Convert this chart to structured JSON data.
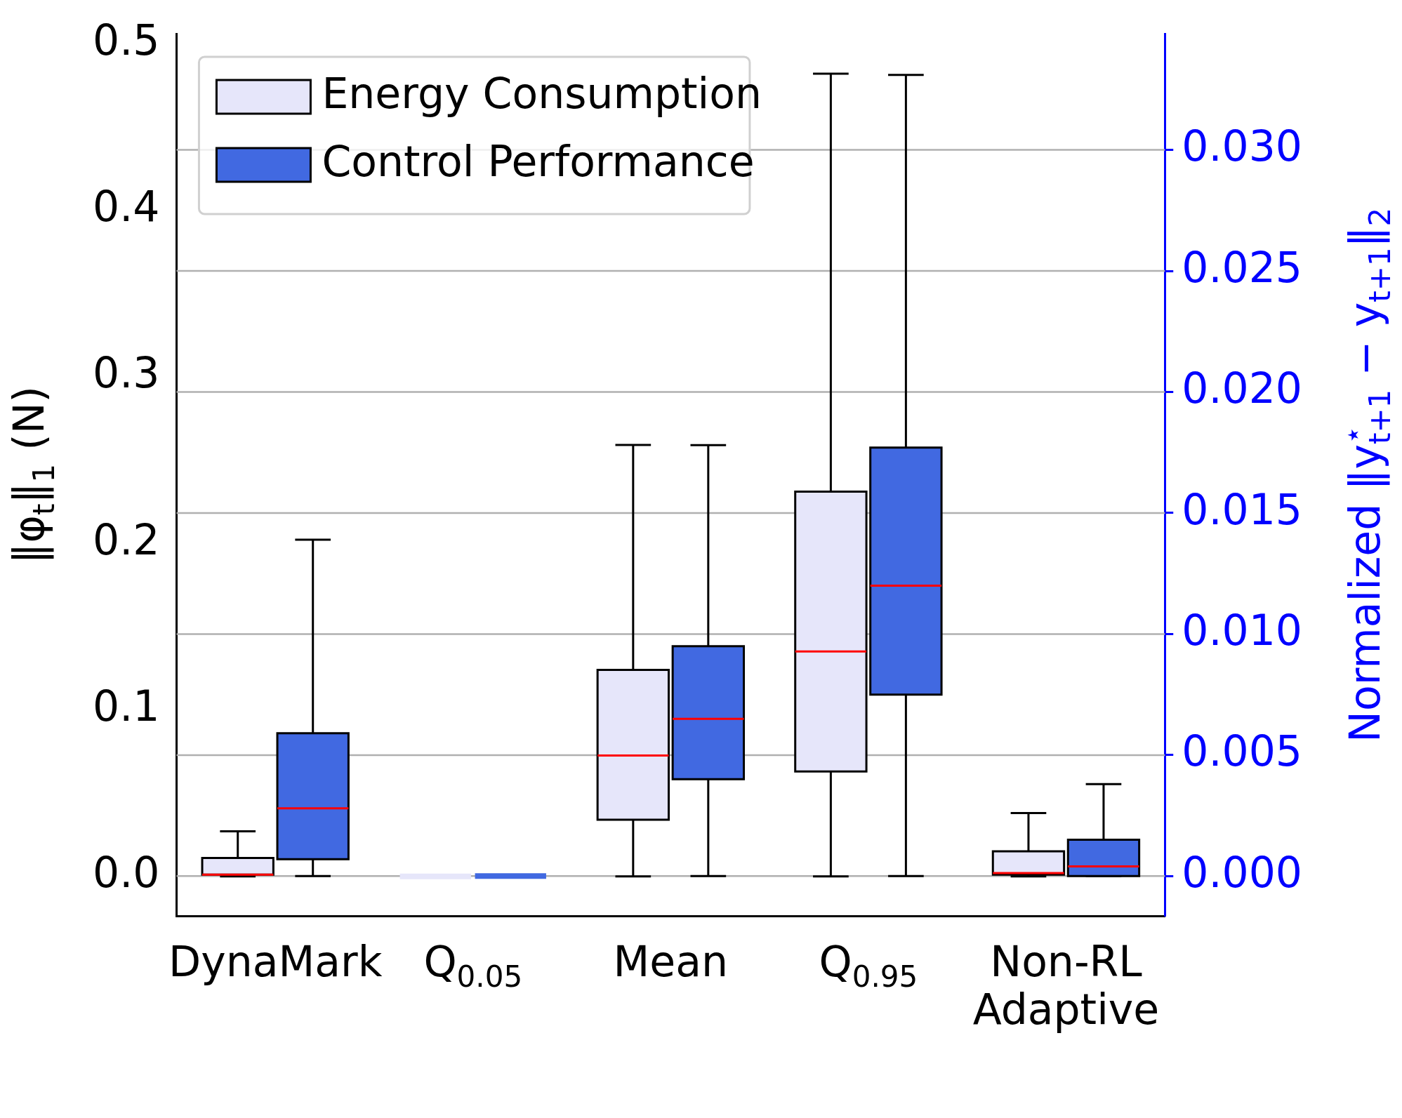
{
  "chart_data": {
    "type": "box",
    "categories": [
      "DynaMark",
      "Q$_{0.05}$",
      "Mean",
      "Q$_{0.95}$",
      "Non-RL Adaptive"
    ],
    "ylabel": "‖φ$_{t}$‖$_{1}$ (N)",
    "y2label": "Normalized ‖y$^{⋆}$$_{t+1}$ − y$_{t+1}$‖$_{2}$",
    "ylim": [
      -0.024,
      0.506
    ],
    "yticks": [
      {
        "value": 0,
        "label": "0.0"
      },
      {
        "value": 0.1,
        "label": "0.1"
      },
      {
        "value": 0.2,
        "label": "0.2"
      },
      {
        "value": 0.3,
        "label": "0.3"
      },
      {
        "value": 0.4,
        "label": "0.4"
      },
      {
        "value": 0.5,
        "label": "0.5"
      }
    ],
    "y2lim": [
      -0.00166,
      0.0348
    ],
    "y2ticks": [
      {
        "value": 0,
        "label": "0.000"
      },
      {
        "value": 0.005,
        "label": "0.005"
      },
      {
        "value": 0.01,
        "label": "0.010"
      },
      {
        "value": 0.015,
        "label": "0.015"
      },
      {
        "value": 0.02,
        "label": "0.020"
      },
      {
        "value": 0.025,
        "label": "0.025"
      },
      {
        "value": 0.03,
        "label": "0.030"
      }
    ],
    "grid": "y2",
    "legend": "top left",
    "series": [
      {
        "name": "Energy Consumption",
        "color": "#e6e6fa",
        "boxes": [
          {
            "low": 0,
            "q1": 0.001,
            "median": 0.001,
            "q3": 0.011,
            "high": 0.027
          },
          {
            "low": 0,
            "q1": 0,
            "median": 0,
            "q3": 0,
            "high": 0
          },
          {
            "low": 0,
            "q1": 0.034,
            "median": 0.0725,
            "q3": 0.124,
            "high": 0.259
          },
          {
            "low": 0,
            "q1": 0.063,
            "median": 0.135,
            "q3": 0.231,
            "high": 0.482
          },
          {
            "low": 0,
            "q1": 0.001,
            "median": 0.002,
            "q3": 0.015,
            "high": 0.038
          }
        ]
      },
      {
        "name": "Control Performance",
        "color": "#4169e1",
        "axis": "y2",
        "boxes": [
          {
            "low": 0,
            "q1": 0.0007,
            "median": 0.0028,
            "q3": 0.0059,
            "high": 0.0139
          },
          {
            "low": 0,
            "q1": 0,
            "median": 0,
            "q3": 0,
            "high": 0
          },
          {
            "low": 0,
            "q1": 0.004,
            "median": 0.0065,
            "q3": 0.0095,
            "high": 0.0178
          },
          {
            "low": 0,
            "q1": 0.0075,
            "median": 0.012,
            "q3": 0.0177,
            "high": 0.0331
          },
          {
            "low": 0,
            "q1": 0,
            "median": 0.0004,
            "q3": 0.0015,
            "high": 0.0038
          }
        ]
      }
    ]
  }
}
